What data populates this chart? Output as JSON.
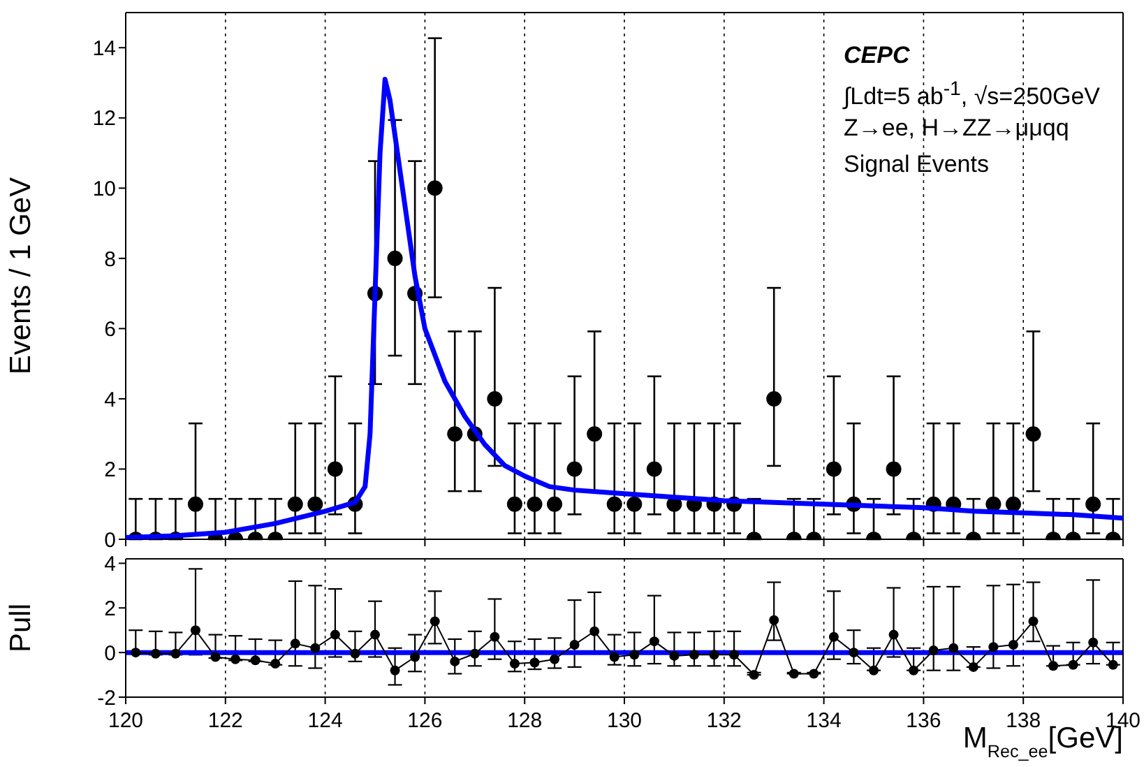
{
  "chart_data": [
    {
      "type": "scatter",
      "ylabel": "Events / 1 GeV",
      "annotations": [
        "CEPC",
        "∫Ldt=5 ab$^{-1}$, √s=250GeV",
        "Z→ee, H→ZZ→μμqq",
        "Signal Events"
      ],
      "xlim": [
        120,
        140
      ],
      "xticks": [
        120,
        122,
        124,
        126,
        128,
        130,
        132,
        134,
        136,
        138,
        140
      ],
      "ylim": [
        0,
        15
      ],
      "yticks": [
        0,
        2,
        4,
        6,
        8,
        10,
        12,
        14
      ],
      "grid": "x",
      "tick_labels": "y",
      "marker": "circle",
      "x": [
        120.2,
        120.6,
        121,
        121.4,
        121.8,
        122.2,
        122.6,
        123,
        123.4,
        123.8,
        124.2,
        124.6,
        125,
        125.4,
        125.8,
        126.2,
        126.6,
        127,
        127.4,
        127.8,
        128.2,
        128.6,
        129,
        129.4,
        129.8,
        130.2,
        130.6,
        131,
        131.4,
        131.8,
        132.2,
        132.6,
        133,
        133.4,
        133.8,
        134.2,
        134.6,
        135,
        135.4,
        135.8,
        136.2,
        136.6,
        137,
        137.4,
        137.8,
        138.2,
        138.6,
        139,
        139.4,
        139.8
      ],
      "series": [
        {
          "type": "scatter",
          "color": "#000000",
          "values": [
            0,
            0,
            0,
            1,
            0,
            0,
            0,
            0,
            1,
            1,
            2,
            1,
            7,
            8,
            7,
            10,
            3,
            3,
            4,
            1,
            1,
            1,
            2,
            3,
            1,
            1,
            2,
            1,
            1,
            1,
            1,
            0,
            4,
            0,
            0,
            2,
            1,
            0,
            2,
            0,
            1,
            1,
            0,
            1,
            1,
            3,
            0,
            0,
            1,
            0
          ],
          "errors": [
            [
              0,
              1.15
            ],
            [
              0,
              1.15
            ],
            [
              0,
              1.15
            ],
            [
              0.17,
              3.3
            ],
            [
              0,
              1.15
            ],
            [
              0,
              1.15
            ],
            [
              0,
              1.15
            ],
            [
              0,
              1.15
            ],
            [
              0.17,
              3.3
            ],
            [
              0.17,
              3.3
            ],
            [
              0.71,
              4.64
            ],
            [
              0.17,
              3.3
            ],
            [
              4.42,
              10.77
            ],
            [
              5.23,
              11.94
            ],
            [
              4.42,
              10.77
            ],
            [
              6.89,
              14.27
            ],
            [
              1.37,
              5.92
            ],
            [
              1.37,
              5.92
            ],
            [
              2.09,
              7.16
            ],
            [
              0.17,
              3.3
            ],
            [
              0.17,
              3.3
            ],
            [
              0.17,
              3.3
            ],
            [
              0.71,
              4.64
            ],
            [
              1.37,
              5.92
            ],
            [
              0.17,
              3.3
            ],
            [
              0.17,
              3.3
            ],
            [
              0.71,
              4.64
            ],
            [
              0.17,
              3.3
            ],
            [
              0.17,
              3.3
            ],
            [
              0.17,
              3.3
            ],
            [
              0.17,
              3.3
            ],
            [
              0,
              1.15
            ],
            [
              2.09,
              7.16
            ],
            [
              0,
              1.15
            ],
            [
              0,
              1.15
            ],
            [
              0.71,
              4.64
            ],
            [
              0.17,
              3.3
            ],
            [
              0,
              1.15
            ],
            [
              0.71,
              4.64
            ],
            [
              0,
              1.15
            ],
            [
              0.17,
              3.3
            ],
            [
              0.17,
              3.3
            ],
            [
              0,
              1.15
            ],
            [
              0.17,
              3.3
            ],
            [
              0.17,
              3.3
            ],
            [
              1.37,
              5.92
            ],
            [
              0,
              1.15
            ],
            [
              0,
              1.15
            ],
            [
              0.17,
              3.3
            ],
            [
              0,
              1.15
            ]
          ]
        },
        {
          "type": "line",
          "color": "#0000ff",
          "marker": "none",
          "x": [
            120,
            121,
            122,
            123,
            124,
            124.6,
            124.8,
            124.9,
            125,
            125.1,
            125.2,
            125.3,
            125.5,
            125.8,
            126,
            126.4,
            126.8,
            127.2,
            127.6,
            128,
            128.5,
            129,
            130,
            131,
            132,
            133,
            134,
            135,
            136,
            137,
            138,
            139,
            140
          ],
          "values": [
            0.05,
            0.1,
            0.2,
            0.45,
            0.8,
            1.05,
            1.5,
            3,
            7,
            11,
            13.1,
            12.5,
            10.5,
            7.5,
            6,
            4.5,
            3.5,
            2.7,
            2.1,
            1.8,
            1.5,
            1.4,
            1.3,
            1.2,
            1.1,
            1.05,
            1,
            0.95,
            0.9,
            0.8,
            0.75,
            0.7,
            0.6
          ]
        }
      ]
    },
    {
      "type": "line",
      "ylabel": "Pull",
      "xlabel": "M$_{Rec_ee}$[GeV]",
      "xlim": [
        120,
        140
      ],
      "xticks": [
        120,
        122,
        124,
        126,
        128,
        130,
        132,
        134,
        136,
        138,
        140
      ],
      "ylim": [
        -2,
        4.2
      ],
      "yticks": [
        -2,
        0,
        2,
        4
      ],
      "grid": "x",
      "marker": "circle",
      "x": [
        120.2,
        120.6,
        121,
        121.4,
        121.8,
        122.2,
        122.6,
        123,
        123.4,
        123.8,
        124.2,
        124.6,
        125,
        125.4,
        125.8,
        126.2,
        126.6,
        127,
        127.4,
        127.8,
        128.2,
        128.6,
        129,
        129.4,
        129.8,
        130.2,
        130.6,
        131,
        131.4,
        131.8,
        132.2,
        132.6,
        133,
        133.4,
        133.8,
        134.2,
        134.6,
        135,
        135.4,
        135.8,
        136.2,
        136.6,
        137,
        137.4,
        137.8,
        138.2,
        138.6,
        139,
        139.4,
        139.8
      ],
      "series": [
        {
          "color": "#000000",
          "values": [
            0,
            -0.05,
            -0.05,
            1,
            -0.2,
            -0.3,
            -0.35,
            -0.5,
            0.4,
            0.2,
            0.8,
            -0.05,
            0.8,
            -0.8,
            -0.2,
            1.4,
            -0.4,
            -0.05,
            0.7,
            -0.5,
            -0.45,
            -0.3,
            0.35,
            0.95,
            -0.2,
            -0.1,
            0.5,
            -0.15,
            -0.1,
            -0.1,
            -0.1,
            -1,
            1.45,
            -0.95,
            -0.95,
            0.7,
            0,
            -0.8,
            0.8,
            -0.8,
            0.1,
            0.2,
            -0.65,
            0.25,
            0.35,
            1.4,
            -0.6,
            -0.55,
            0.45,
            -0.55
          ],
          "errors": [
            [
              -0.05,
              1
            ],
            [
              -0.1,
              0.95
            ],
            [
              -0.1,
              0.9
            ],
            [
              -0.1,
              3.75
            ],
            [
              -0.25,
              0.8
            ],
            [
              -0.35,
              0.75
            ],
            [
              -0.4,
              0.6
            ],
            [
              -0.55,
              0.55
            ],
            [
              -0.6,
              3.2
            ],
            [
              -0.7,
              3
            ],
            [
              -0.2,
              2.85
            ],
            [
              -0.4,
              0.95
            ],
            [
              -0.2,
              2.3
            ],
            [
              -1.45,
              0.2
            ],
            [
              -0.85,
              0.8
            ],
            [
              0.4,
              2.75
            ],
            [
              -0.95,
              0.6
            ],
            [
              -0.6,
              0.95
            ],
            [
              -0.3,
              2.4
            ],
            [
              -0.85,
              0.5
            ],
            [
              -0.75,
              0.6
            ],
            [
              -0.7,
              0.65
            ],
            [
              -0.65,
              2.35
            ],
            [
              0,
              2.7
            ],
            [
              -0.55,
              0.8
            ],
            [
              -0.6,
              0.9
            ],
            [
              -0.5,
              2.55
            ],
            [
              -0.6,
              0.9
            ],
            [
              -0.6,
              0.9
            ],
            [
              -0.6,
              0.95
            ],
            [
              -0.6,
              0.95
            ],
            [
              -1,
              -0.9
            ],
            [
              0.55,
              3.15
            ],
            [
              -0.95,
              -0.9
            ],
            [
              -0.95,
              -0.9
            ],
            [
              -0.3,
              2.75
            ],
            [
              -0.5,
              1
            ],
            [
              -0.8,
              0.2
            ],
            [
              -0.2,
              2.9
            ],
            [
              -0.8,
              0.2
            ],
            [
              -0.8,
              2.95
            ],
            [
              -0.8,
              2.95
            ],
            [
              -0.65,
              0.25
            ],
            [
              -0.7,
              3
            ],
            [
              -0.6,
              3.05
            ],
            [
              0.5,
              3.15
            ],
            [
              -0.6,
              0.3
            ],
            [
              -0.55,
              0.45
            ],
            [
              -0.5,
              3.25
            ],
            [
              -0.55,
              0.45
            ]
          ]
        }
      ],
      "ref_lines": [
        {
          "axis": "y",
          "value": 0,
          "color": "#0000ff"
        }
      ]
    }
  ]
}
